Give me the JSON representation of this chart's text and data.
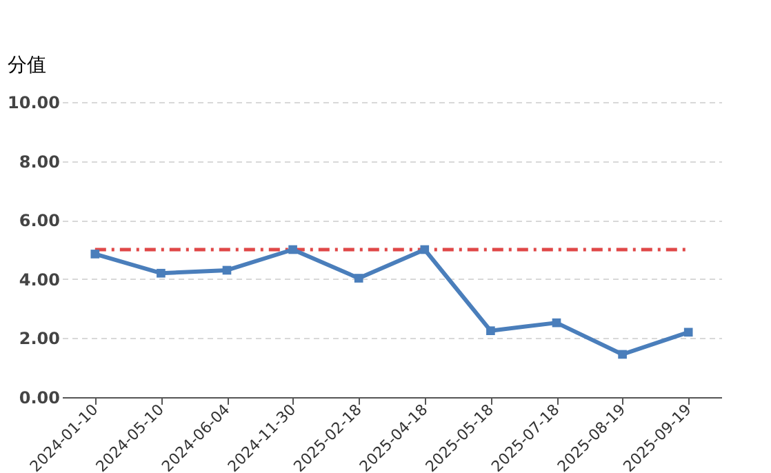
{
  "chart_data": {
    "type": "line",
    "ylabel": "分值",
    "categories": [
      "2024-01-10",
      "2024-05-10",
      "2024-06-04",
      "2024-11-30",
      "2025-02-18",
      "2025-04-18",
      "2025-05-18",
      "2025-07-18",
      "2025-08-19",
      "2025-09-19"
    ],
    "series": [
      {
        "color": "#4a7ebb",
        "values": [
          4.85,
          4.2,
          4.3,
          5.0,
          4.03,
          5.0,
          2.25,
          2.52,
          1.45,
          2.2
        ]
      }
    ],
    "ylim": [
      0,
      10
    ],
    "yticks": [
      {
        "value": 0,
        "label": "0.00"
      },
      {
        "value": 2,
        "label": "2.00"
      },
      {
        "value": 4,
        "label": "4.00"
      },
      {
        "value": 6,
        "label": "6.00"
      },
      {
        "value": 8,
        "label": "8.00"
      },
      {
        "value": 10,
        "label": "10.00"
      }
    ],
    "ref_lines": [
      {
        "axis": "y",
        "value": 5.0,
        "color": "#e04848",
        "line_style": "dashed"
      }
    ],
    "grid": "y",
    "marker": "square",
    "line_style": "solid"
  }
}
